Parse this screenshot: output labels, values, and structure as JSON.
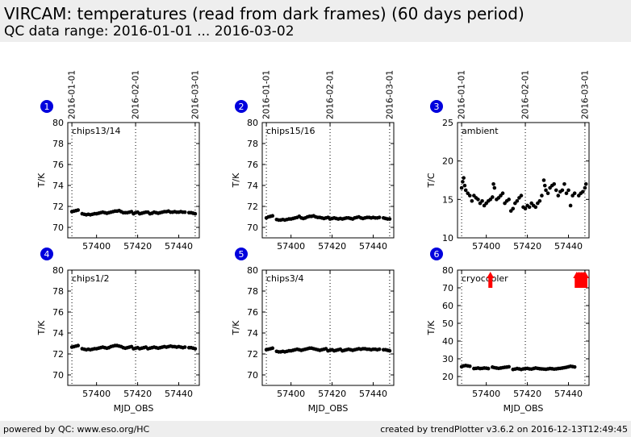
{
  "header": {
    "title": "VIRCAM: temperatures (read from dark frames) (60 days period)",
    "subtitle": "QC data range: 2016-01-01 ... 2016-03-02"
  },
  "footer": {
    "left": "powered by QC: www.eso.org/HC",
    "right": "created by trendPlotter v3.6.2 on 2016-12-13T12:49:45"
  },
  "colors": {
    "marker": "#000000",
    "badge": "#0000dd",
    "outlier": "#ff0000"
  },
  "chart_data": [
    {
      "type": "scatter",
      "index": "1",
      "label": "chips13/14",
      "xlabel": "",
      "ylabel": "T/K",
      "xlim": [
        57386,
        57450
      ],
      "ylim": [
        69,
        80
      ],
      "yticks": [
        70,
        72,
        74,
        76,
        78,
        80
      ],
      "xticks": [
        57400,
        57420,
        57440
      ],
      "date_ticks": [
        {
          "x": 57388,
          "label": "2016-01-01"
        },
        {
          "x": 57419,
          "label": "2016-02-01"
        },
        {
          "x": 57448,
          "label": "2016-03-01"
        }
      ],
      "x": [
        57388,
        57389,
        57390,
        57391,
        57393,
        57394,
        57395,
        57396,
        57397,
        57398,
        57399,
        57400,
        57401,
        57402,
        57403,
        57404,
        57405,
        57406,
        57407,
        57408,
        57409,
        57410,
        57411,
        57412,
        57413,
        57414,
        57415,
        57416,
        57417,
        57418,
        57419,
        57420,
        57421,
        57422,
        57423,
        57424,
        57425,
        57426,
        57427,
        57428,
        57429,
        57430,
        57431,
        57432,
        57433,
        57434,
        57435,
        57436,
        57437,
        57438,
        57439,
        57440,
        57441,
        57442,
        57443,
        57445,
        57446,
        57447,
        57448
      ],
      "y": [
        71.5,
        71.55,
        71.6,
        71.65,
        71.3,
        71.25,
        71.2,
        71.25,
        71.2,
        71.25,
        71.3,
        71.3,
        71.35,
        71.4,
        71.45,
        71.4,
        71.35,
        71.4,
        71.45,
        71.5,
        71.55,
        71.55,
        71.6,
        71.5,
        71.4,
        71.4,
        71.4,
        71.45,
        71.5,
        71.3,
        71.4,
        71.45,
        71.3,
        71.35,
        71.4,
        71.45,
        71.45,
        71.3,
        71.35,
        71.45,
        71.4,
        71.35,
        71.4,
        71.45,
        71.5,
        71.5,
        71.55,
        71.45,
        71.45,
        71.5,
        71.45,
        71.45,
        71.5,
        71.45,
        71.45,
        71.4,
        71.4,
        71.35,
        71.3
      ],
      "outliers": []
    },
    {
      "type": "scatter",
      "index": "2",
      "label": "chips15/16",
      "xlabel": "",
      "ylabel": "T/K",
      "xlim": [
        57386,
        57450
      ],
      "ylim": [
        69,
        80
      ],
      "yticks": [
        70,
        72,
        74,
        76,
        78,
        80
      ],
      "xticks": [
        57400,
        57420,
        57440
      ],
      "date_ticks": [
        {
          "x": 57388,
          "label": "2016-01-01"
        },
        {
          "x": 57419,
          "label": "2016-02-01"
        },
        {
          "x": 57448,
          "label": "2016-03-01"
        }
      ],
      "x": [
        57388,
        57389,
        57390,
        57391,
        57393,
        57394,
        57395,
        57396,
        57397,
        57398,
        57399,
        57400,
        57401,
        57402,
        57403,
        57404,
        57405,
        57406,
        57407,
        57408,
        57409,
        57410,
        57411,
        57412,
        57413,
        57414,
        57415,
        57416,
        57417,
        57418,
        57419,
        57420,
        57421,
        57422,
        57423,
        57424,
        57425,
        57426,
        57427,
        57428,
        57429,
        57430,
        57431,
        57432,
        57433,
        57434,
        57435,
        57436,
        57437,
        57438,
        57439,
        57440,
        57441,
        57442,
        57443,
        57445,
        57446,
        57447,
        57448
      ],
      "y": [
        70.9,
        71.0,
        71.05,
        71.1,
        70.75,
        70.7,
        70.7,
        70.75,
        70.7,
        70.75,
        70.8,
        70.8,
        70.85,
        70.9,
        70.95,
        71.05,
        70.9,
        70.85,
        70.9,
        71.0,
        71.05,
        71.05,
        71.1,
        71.0,
        70.95,
        70.95,
        70.9,
        70.85,
        70.9,
        70.95,
        70.8,
        70.85,
        70.9,
        70.85,
        70.8,
        70.85,
        70.8,
        70.85,
        70.9,
        70.9,
        70.85,
        70.8,
        70.9,
        70.95,
        71.0,
        70.9,
        70.85,
        70.9,
        70.95,
        70.95,
        70.9,
        70.95,
        70.9,
        70.9,
        70.95,
        70.9,
        70.85,
        70.8,
        70.8
      ],
      "outliers": []
    },
    {
      "type": "scatter",
      "index": "3",
      "label": "ambient",
      "xlabel": "",
      "ylabel": "T/C",
      "xlim": [
        57386,
        57450
      ],
      "ylim": [
        10,
        25
      ],
      "yticks": [
        10,
        15,
        20,
        25
      ],
      "xticks": [
        57400,
        57420,
        57440
      ],
      "date_ticks": [
        {
          "x": 57388,
          "label": "2016-01-01"
        },
        {
          "x": 57419,
          "label": "2016-02-01"
        },
        {
          "x": 57448,
          "label": "2016-03-01"
        }
      ],
      "x": [
        57388,
        57388.5,
        57389,
        57389.5,
        57390,
        57391,
        57392,
        57393,
        57394,
        57395,
        57396,
        57397,
        57398,
        57399,
        57400,
        57401,
        57402,
        57403,
        57403.5,
        57404,
        57405,
        57406,
        57407,
        57408,
        57409,
        57410,
        57411,
        57412,
        57413,
        57414,
        57415,
        57416,
        57417,
        57418,
        57419,
        57420,
        57421,
        57422,
        57423,
        57424,
        57425,
        57426,
        57427,
        57428,
        57428.5,
        57429,
        57430,
        57431,
        57432,
        57433,
        57434,
        57435,
        57436,
        57437,
        57438,
        57439,
        57440,
        57441,
        57442,
        57443,
        57445,
        57446,
        57447,
        57448,
        57448.5
      ],
      "y": [
        16.5,
        17.3,
        17.8,
        16.8,
        16.2,
        15.8,
        15.5,
        14.8,
        15.5,
        15.2,
        15.0,
        14.5,
        14.8,
        14.2,
        14.5,
        14.8,
        15.0,
        15.3,
        17.0,
        16.5,
        15.0,
        15.2,
        15.5,
        15.8,
        14.5,
        14.8,
        15.0,
        13.5,
        13.8,
        14.5,
        14.8,
        15.2,
        15.5,
        14.0,
        13.8,
        14.2,
        14.0,
        14.5,
        14.2,
        14.0,
        14.5,
        14.8,
        15.5,
        17.5,
        16.8,
        16.2,
        15.8,
        16.5,
        16.8,
        17.0,
        16.2,
        15.5,
        16.0,
        16.2,
        17.0,
        15.8,
        16.2,
        14.2,
        15.5,
        15.8,
        15.5,
        15.8,
        16.0,
        16.5,
        17.0
      ],
      "outliers": []
    },
    {
      "type": "scatter",
      "index": "4",
      "label": "chips1/2",
      "xlabel": "MJD_OBS",
      "ylabel": "T/K",
      "xlim": [
        57386,
        57450
      ],
      "ylim": [
        69,
        80
      ],
      "yticks": [
        70,
        72,
        74,
        76,
        78,
        80
      ],
      "xticks": [
        57400,
        57420,
        57440
      ],
      "date_ticks": [
        {
          "x": 57388,
          "label": ""
        },
        {
          "x": 57419,
          "label": ""
        },
        {
          "x": 57448,
          "label": ""
        }
      ],
      "x": [
        57388,
        57389,
        57390,
        57391,
        57393,
        57394,
        57395,
        57396,
        57397,
        57398,
        57399,
        57400,
        57401,
        57402,
        57403,
        57404,
        57405,
        57406,
        57407,
        57408,
        57409,
        57410,
        57411,
        57412,
        57413,
        57414,
        57415,
        57416,
        57417,
        57418,
        57419,
        57420,
        57421,
        57422,
        57423,
        57424,
        57425,
        57426,
        57427,
        57428,
        57429,
        57430,
        57431,
        57432,
        57433,
        57434,
        57435,
        57436,
        57437,
        57438,
        57439,
        57440,
        57441,
        57442,
        57443,
        57445,
        57446,
        57447,
        57448
      ],
      "y": [
        72.65,
        72.7,
        72.75,
        72.8,
        72.5,
        72.45,
        72.4,
        72.45,
        72.4,
        72.45,
        72.5,
        72.5,
        72.55,
        72.6,
        72.65,
        72.6,
        72.55,
        72.6,
        72.7,
        72.75,
        72.8,
        72.8,
        72.75,
        72.7,
        72.6,
        72.55,
        72.6,
        72.65,
        72.7,
        72.5,
        72.55,
        72.6,
        72.5,
        72.55,
        72.6,
        72.65,
        72.5,
        72.55,
        72.6,
        72.65,
        72.6,
        72.55,
        72.6,
        72.65,
        72.7,
        72.65,
        72.7,
        72.75,
        72.7,
        72.7,
        72.65,
        72.7,
        72.65,
        72.6,
        72.65,
        72.6,
        72.6,
        72.55,
        72.5
      ],
      "outliers": []
    },
    {
      "type": "scatter",
      "index": "5",
      "label": "chips3/4",
      "xlabel": "MJD_OBS",
      "ylabel": "T/K",
      "xlim": [
        57386,
        57450
      ],
      "ylim": [
        69,
        80
      ],
      "yticks": [
        70,
        72,
        74,
        76,
        78,
        80
      ],
      "xticks": [
        57400,
        57420,
        57440
      ],
      "date_ticks": [
        {
          "x": 57388,
          "label": ""
        },
        {
          "x": 57419,
          "label": ""
        },
        {
          "x": 57448,
          "label": ""
        }
      ],
      "x": [
        57388,
        57389,
        57390,
        57391,
        57393,
        57394,
        57395,
        57396,
        57397,
        57398,
        57399,
        57400,
        57401,
        57402,
        57403,
        57404,
        57405,
        57406,
        57407,
        57408,
        57409,
        57410,
        57411,
        57412,
        57413,
        57414,
        57415,
        57416,
        57417,
        57418,
        57419,
        57420,
        57421,
        57422,
        57423,
        57424,
        57425,
        57426,
        57427,
        57428,
        57429,
        57430,
        57431,
        57432,
        57433,
        57434,
        57435,
        57436,
        57437,
        57438,
        57439,
        57440,
        57441,
        57442,
        57443,
        57445,
        57446,
        57447,
        57448
      ],
      "y": [
        72.4,
        72.45,
        72.5,
        72.55,
        72.25,
        72.2,
        72.2,
        72.25,
        72.2,
        72.25,
        72.3,
        72.3,
        72.35,
        72.4,
        72.45,
        72.4,
        72.35,
        72.4,
        72.45,
        72.5,
        72.55,
        72.55,
        72.5,
        72.45,
        72.4,
        72.35,
        72.4,
        72.45,
        72.5,
        72.3,
        72.35,
        72.4,
        72.3,
        72.35,
        72.4,
        72.45,
        72.3,
        72.35,
        72.4,
        72.45,
        72.4,
        72.35,
        72.4,
        72.45,
        72.5,
        72.45,
        72.5,
        72.5,
        72.45,
        72.45,
        72.4,
        72.45,
        72.45,
        72.4,
        72.45,
        72.4,
        72.4,
        72.35,
        72.3
      ],
      "outliers": []
    },
    {
      "type": "scatter",
      "index": "6",
      "label": "cryocooler",
      "xlabel": "MJD_OBS",
      "ylabel": "T/K",
      "xlim": [
        57386,
        57450
      ],
      "ylim": [
        15,
        80
      ],
      "yticks": [
        20,
        30,
        40,
        50,
        60,
        70,
        80
      ],
      "xticks": [
        57400,
        57420,
        57440
      ],
      "date_ticks": [
        {
          "x": 57388,
          "label": ""
        },
        {
          "x": 57419,
          "label": ""
        },
        {
          "x": 57448,
          "label": ""
        }
      ],
      "x": [
        57388,
        57389,
        57390,
        57391,
        57392,
        57394,
        57395,
        57396,
        57397,
        57398,
        57399,
        57400,
        57401,
        57403,
        57404,
        57405,
        57406,
        57407,
        57408,
        57409,
        57410,
        57411,
        57413,
        57414,
        57415,
        57416,
        57417,
        57418,
        57419,
        57420,
        57421,
        57422,
        57423,
        57424,
        57425,
        57426,
        57427,
        57428,
        57429,
        57430,
        57431,
        57432,
        57433,
        57434,
        57435,
        57436,
        57437,
        57438,
        57439,
        57440,
        57441,
        57442,
        57443
      ],
      "y": [
        25.5,
        26.0,
        26.2,
        26.0,
        25.8,
        24.5,
        24.6,
        24.8,
        24.5,
        24.6,
        24.8,
        24.7,
        24.5,
        25.3,
        25.0,
        24.8,
        24.6,
        24.8,
        25.0,
        25.2,
        25.3,
        25.5,
        24.0,
        24.2,
        24.5,
        24.3,
        24.0,
        24.3,
        24.5,
        24.6,
        24.3,
        24.2,
        24.5,
        24.8,
        24.6,
        24.4,
        24.3,
        24.2,
        24.1,
        24.3,
        24.5,
        24.4,
        24.2,
        24.3,
        24.5,
        24.6,
        24.8,
        25.0,
        25.2,
        25.5,
        25.8,
        25.6,
        25.4
      ],
      "outliers": [
        57402,
        57444,
        57444.7,
        57445.4,
        57446.1,
        57446.8,
        57447.5,
        57448.2
      ]
    }
  ]
}
